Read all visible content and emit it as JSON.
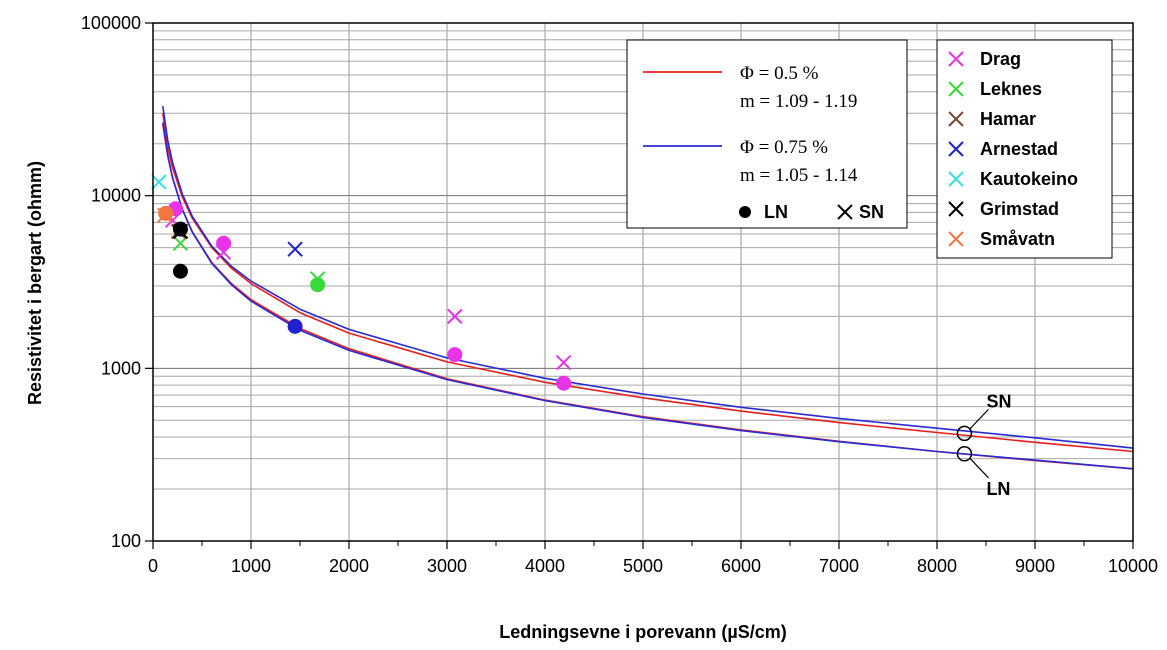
{
  "chart_data": {
    "type": "scatter",
    "y_scale": "log",
    "xlim": [
      0,
      10000
    ],
    "ylim": [
      100,
      100000
    ],
    "grid": true,
    "xlabel": "Ledningsevne i porevann (µS/cm)",
    "ylabel": "Resistivitet i bergart  (ohmm)",
    "x_ticks": [
      "0",
      "1000",
      "2000",
      "3000",
      "4000",
      "5000",
      "6000",
      "7000",
      "8000",
      "9000",
      "10000"
    ],
    "y_ticks": [
      "100",
      "1000",
      "10000",
      "100000"
    ],
    "curve_legend": {
      "position": "top-center",
      "entries": [
        {
          "color": "#e8201c",
          "line1": "Φ = 0.5 %",
          "line2": "m = 1.09 - 1.19"
        },
        {
          "color": "#2a2ad6",
          "line1": "Φ = 0.75 %",
          "line2": "m = 1.05 - 1.14"
        }
      ],
      "marker_ln": "LN",
      "marker_sn": "SN"
    },
    "site_legend": {
      "position": "top-right",
      "entries": [
        {
          "name": "Drag",
          "color": "#e834e8"
        },
        {
          "name": "Leknes",
          "color": "#3ad83a"
        },
        {
          "name": "Hamar",
          "color": "#7a4a3a"
        },
        {
          "name": "Arnestad",
          "color": "#2020d0"
        },
        {
          "name": "Kautokeino",
          "color": "#38e0e0"
        },
        {
          "name": "Grimstad",
          "color": "#000000"
        },
        {
          "name": "Småvatn",
          "color": "#f07840"
        }
      ]
    },
    "series": [
      {
        "name": "Φ = 0.5 %",
        "kind": "curve",
        "color": "#e8201c",
        "x": [
          100,
          150,
          200,
          300,
          400,
          600,
          800,
          1000,
          1500,
          2000,
          3000,
          4000,
          5000,
          6000,
          7000,
          8000,
          9000,
          10000
        ],
        "y": [
          30000,
          19000,
          14500,
          9800,
          7400,
          5000,
          3800,
          3100,
          2100,
          1600,
          1090,
          830,
          675,
          565,
          485,
          425,
          373,
          330
        ]
      },
      {
        "name": "Φ = 0.5 %",
        "kind": "curve",
        "color": "#e8201c",
        "x": [
          100,
          150,
          200,
          300,
          400,
          600,
          800,
          1000,
          1500,
          2000,
          3000,
          4000,
          5000,
          6000,
          7000,
          8000,
          9000,
          10000
        ],
        "y": [
          26000,
          17000,
          12600,
          8300,
          6200,
          4100,
          3100,
          2500,
          1700,
          1300,
          870,
          655,
          525,
          440,
          378,
          330,
          292,
          262
        ]
      },
      {
        "name": "Φ = 0.75 %",
        "kind": "curve",
        "color": "#2a2ad6",
        "x": [
          100,
          150,
          200,
          300,
          400,
          600,
          800,
          1000,
          1500,
          2000,
          3000,
          4000,
          5000,
          6000,
          7000,
          8000,
          9000,
          10000
        ],
        "y": [
          33000,
          21000,
          15500,
          10200,
          7600,
          5100,
          3900,
          3200,
          2200,
          1680,
          1150,
          875,
          710,
          595,
          513,
          450,
          396,
          345
        ]
      },
      {
        "name": "Φ = 0.75 %",
        "kind": "curve",
        "color": "#2a2ad6",
        "x": [
          100,
          150,
          200,
          300,
          400,
          600,
          800,
          1000,
          1500,
          2000,
          3000,
          4000,
          5000,
          6000,
          7000,
          8000,
          9000,
          10000
        ],
        "y": [
          26500,
          17200,
          12700,
          8300,
          6150,
          4050,
          3050,
          2450,
          1660,
          1270,
          860,
          650,
          520,
          436,
          376,
          330,
          294,
          262
        ]
      },
      {
        "name": "Drag",
        "kind": "points",
        "color": "#e834e8",
        "LN": [
          [
            230,
            8400
          ],
          [
            720,
            5300
          ],
          [
            3080,
            1200
          ],
          [
            4190,
            820
          ]
        ],
        "SN": [
          [
            200,
            7200
          ],
          [
            720,
            4700
          ],
          [
            3080,
            2000
          ],
          [
            4190,
            1080
          ]
        ]
      },
      {
        "name": "Leknes",
        "kind": "points",
        "color": "#3ad83a",
        "LN": [
          [
            1680,
            3050
          ]
        ],
        "SN": [
          [
            280,
            5300
          ],
          [
            1680,
            3300
          ]
        ]
      },
      {
        "name": "Hamar",
        "kind": "points",
        "color": "#7a4a3a",
        "LN": [],
        "SN": [
          [
            260,
            6200
          ]
        ]
      },
      {
        "name": "Arnestad",
        "kind": "points",
        "color": "#2020d0",
        "LN": [
          [
            1450,
            1750
          ]
        ],
        "SN": [
          [
            1450,
            4900
          ]
        ]
      },
      {
        "name": "Kautokeino",
        "kind": "points",
        "color": "#38e0e0",
        "LN": [],
        "SN": [
          [
            60,
            12000
          ]
        ]
      },
      {
        "name": "Grimstad",
        "kind": "points",
        "color": "#000000",
        "LN": [
          [
            280,
            3650
          ],
          [
            280,
            6400
          ]
        ],
        "SN": [
          [
            280,
            6200
          ]
        ]
      },
      {
        "name": "Småvatn",
        "kind": "points",
        "color": "#f07840",
        "LN": [
          [
            130,
            7900
          ]
        ],
        "SN": [
          [
            120,
            7700
          ]
        ]
      }
    ],
    "annotations": [
      {
        "text": "SN",
        "x": 8280,
        "y": 420
      },
      {
        "text": "LN",
        "x": 8280,
        "y": 320
      }
    ]
  }
}
